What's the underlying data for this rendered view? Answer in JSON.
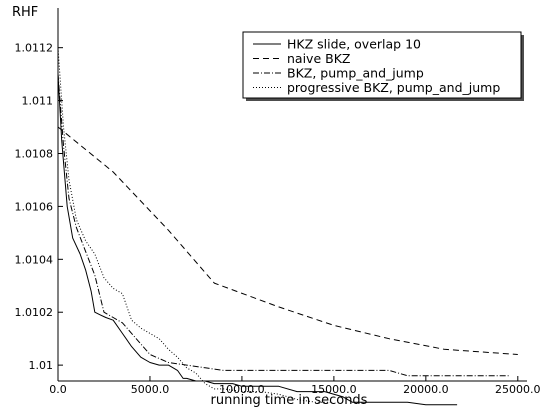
{
  "chart_data": {
    "type": "line",
    "title": "",
    "xlabel": "running time in seconds",
    "ylabel": "RHF",
    "xlim": [
      0,
      25500
    ],
    "ylim": [
      1.00994,
      1.01135
    ],
    "x_ticks": [
      0,
      5000,
      10000,
      15000,
      20000,
      25000
    ],
    "x_tick_labels": [
      "0.0",
      "5000.0",
      "10000.0",
      "15000.0",
      "20000.0",
      "25000.0"
    ],
    "y_ticks": [
      1.01,
      1.0102,
      1.0104,
      1.0106,
      1.0108,
      1.011,
      1.0112
    ],
    "y_tick_labels": [
      "1.01",
      "1.0102",
      "1.0104",
      "1.0106",
      "1.0108",
      "1.011",
      "1.0112"
    ],
    "grid": false,
    "legend_position": "top-right",
    "series": [
      {
        "name": "HKZ slide, overlap 10",
        "style": "solid",
        "color": "#000000",
        "x": [
          0,
          200,
          500,
          800,
          1200,
          1500,
          1800,
          2000,
          2300,
          2600,
          3000,
          3500,
          4000,
          4500,
          5000,
          5500,
          6000,
          6500,
          6800,
          7000,
          7500,
          8000,
          8500,
          9000,
          9500,
          10000,
          11000,
          12000,
          13000,
          14000,
          14500,
          15500,
          16000,
          16500,
          17000,
          18000,
          19000,
          20000,
          21000,
          21700
        ],
        "y": [
          1.0111,
          1.01085,
          1.0106,
          1.01048,
          1.01042,
          1.01036,
          1.01028,
          1.0102,
          1.01019,
          1.01018,
          1.01017,
          1.01012,
          1.01007,
          1.01003,
          1.01001,
          1.01,
          1.01,
          1.00998,
          1.00995,
          1.00995,
          1.00994,
          1.00994,
          1.00993,
          1.00993,
          1.00993,
          1.00992,
          1.00992,
          1.00992,
          1.0099,
          1.0099,
          1.0099,
          1.00988,
          1.00986,
          1.00986,
          1.00986,
          1.00986,
          1.00986,
          1.00985,
          1.00985,
          1.00985
        ]
      },
      {
        "name": "naive BKZ",
        "style": "dashed",
        "color": "#000000",
        "x": [
          0,
          3000,
          6000,
          8500,
          12000,
          15000,
          18000,
          21000,
          25000
        ],
        "y": [
          1.0109,
          1.01073,
          1.01051,
          1.01031,
          1.01022,
          1.01015,
          1.0101,
          1.01006,
          1.01004
        ]
      },
      {
        "name": "BKZ, pump_and_jump",
        "style": "dashdot",
        "color": "#000000",
        "x": [
          0,
          300,
          600,
          1000,
          1500,
          2000,
          2500,
          3000,
          3500,
          4000,
          5000,
          6000,
          7000,
          8000,
          9000,
          10000,
          12000,
          14000,
          16000,
          18000,
          19000,
          20000,
          22000,
          24500
        ],
        "y": [
          1.0111,
          1.01083,
          1.01063,
          1.01052,
          1.01043,
          1.01034,
          1.0102,
          1.01018,
          1.01016,
          1.01012,
          1.01004,
          1.01001,
          1.01,
          1.00999,
          1.00998,
          1.00998,
          1.00998,
          1.00998,
          1.00998,
          1.00998,
          1.00996,
          1.00996,
          1.00996,
          1.00996
        ]
      },
      {
        "name": "progressive BKZ, pump_and_jump",
        "style": "dotted",
        "color": "#000000",
        "x": [
          0,
          300,
          600,
          1000,
          1500,
          2000,
          2500,
          3000,
          3500,
          4000,
          4500,
          5000,
          5500,
          6000,
          6500,
          7000,
          7500,
          8000,
          8500,
          9000,
          10000,
          11000,
          12000,
          13000,
          14000,
          14800
        ],
        "y": [
          1.0112,
          1.0109,
          1.0107,
          1.01055,
          1.01047,
          1.01042,
          1.01033,
          1.01029,
          1.01027,
          1.01017,
          1.01014,
          1.01012,
          1.0101,
          1.01006,
          1.01003,
          1.00999,
          1.00997,
          1.00993,
          1.00991,
          1.00991,
          1.0099,
          1.0099,
          1.00989,
          1.00987,
          1.00986,
          1.00986
        ]
      }
    ]
  }
}
